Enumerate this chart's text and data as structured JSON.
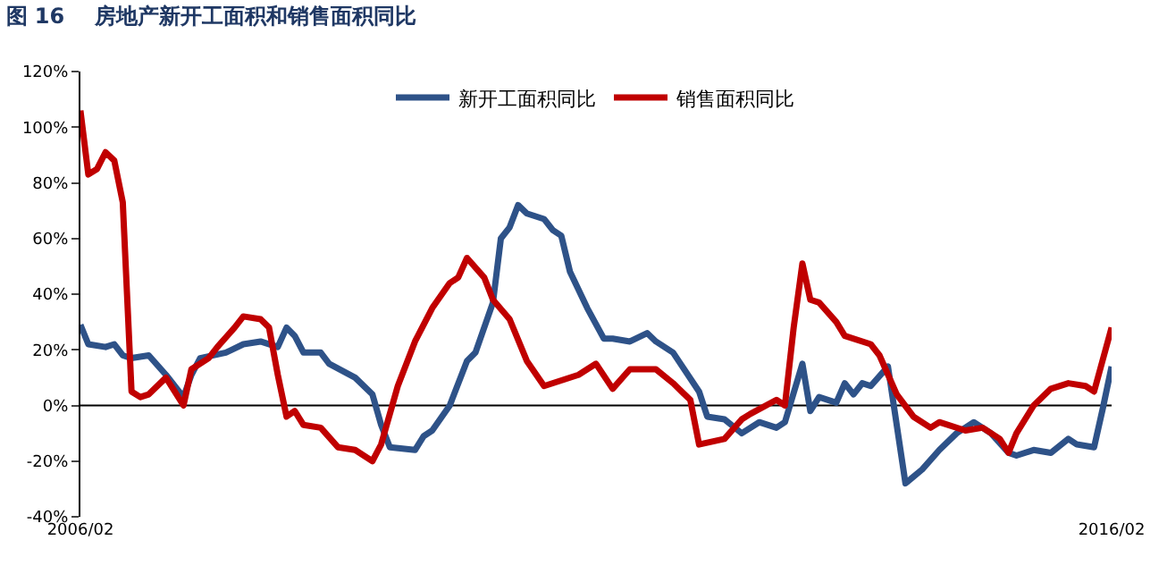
{
  "chart_data": {
    "type": "line",
    "title": "图 16    房地产新开工面积和销售面积同比",
    "xlim": [
      "2006-02",
      "2016-02"
    ],
    "xticks": [
      {
        "value": "2006-02",
        "label": "2006/02"
      },
      {
        "value": "2016-02",
        "label": "2016/02"
      }
    ],
    "ylim": [
      -40,
      120
    ],
    "yticks": [
      {
        "value": -40,
        "label": "-40%"
      },
      {
        "value": -20,
        "label": "-20%"
      },
      {
        "value": 0,
        "label": "0%"
      },
      {
        "value": 20,
        "label": "20%"
      },
      {
        "value": 40,
        "label": "40%"
      },
      {
        "value": 60,
        "label": "60%"
      },
      {
        "value": 80,
        "label": "80%"
      },
      {
        "value": 100,
        "label": "100%"
      },
      {
        "value": 120,
        "label": "120%"
      }
    ],
    "grid": false,
    "ref_lines": [
      {
        "axis": "y",
        "value": 0,
        "color": "#000000"
      }
    ],
    "legend": "top",
    "marker": "none",
    "line_style": "solid",
    "series": [
      {
        "name": "新开工面积同比",
        "color": "#2e5288",
        "x": [
          "2006-02",
          "2006-03",
          "2006-05",
          "2006-06",
          "2006-07",
          "2006-08",
          "2006-10",
          "2006-12",
          "2007-02",
          "2007-03",
          "2007-04",
          "2007-07",
          "2007-09",
          "2007-11",
          "2008-01",
          "2008-02",
          "2008-03",
          "2008-04",
          "2008-06",
          "2008-07",
          "2008-10",
          "2008-12",
          "2009-01",
          "2009-02",
          "2009-05",
          "2009-06",
          "2009-07",
          "2009-09",
          "2009-11",
          "2009-12",
          "2010-02",
          "2010-03",
          "2010-04",
          "2010-05",
          "2010-06",
          "2010-08",
          "2010-09",
          "2010-10",
          "2010-11",
          "2011-01",
          "2011-03",
          "2011-04",
          "2011-06",
          "2011-08",
          "2011-09",
          "2011-11",
          "2012-02",
          "2012-03",
          "2012-05",
          "2012-07",
          "2012-09",
          "2012-11",
          "2012-12",
          "2013-02",
          "2013-03",
          "2013-04",
          "2013-06",
          "2013-07",
          "2013-08",
          "2013-09",
          "2013-10",
          "2013-12",
          "2014-02",
          "2014-04",
          "2014-06",
          "2014-08",
          "2014-10",
          "2014-12",
          "2015-02",
          "2015-03",
          "2015-05",
          "2015-07",
          "2015-09",
          "2015-10",
          "2015-12",
          "2016-01",
          "2016-02"
        ],
        "values": [
          29,
          22,
          21,
          22,
          18,
          17,
          18,
          11,
          3,
          11,
          17,
          19,
          22,
          23,
          21,
          28,
          25,
          19,
          19,
          15,
          10,
          4,
          -7,
          -15,
          -16,
          -11,
          -9,
          0,
          16,
          19,
          37,
          60,
          64,
          72,
          69,
          67,
          63,
          61,
          48,
          35,
          24,
          24,
          23,
          26,
          23,
          19,
          5,
          -4,
          -5,
          -10,
          -6,
          -8,
          -6,
          15,
          -2,
          3,
          1,
          8,
          4,
          8,
          7,
          14,
          -28,
          -23,
          -16,
          -10,
          -6,
          -10,
          -17,
          -18,
          -16,
          -17,
          -12,
          -14,
          -15,
          -1,
          14
        ]
      },
      {
        "name": "销售面积同比",
        "color": "#c00000",
        "x": [
          "2006-02",
          "2006-03",
          "2006-04",
          "2006-05",
          "2006-06",
          "2006-07",
          "2006-08",
          "2006-09",
          "2006-10",
          "2006-12",
          "2007-01",
          "2007-02",
          "2007-03",
          "2007-05",
          "2007-06",
          "2007-08",
          "2007-09",
          "2007-11",
          "2007-12",
          "2008-01",
          "2008-02",
          "2008-03",
          "2008-04",
          "2008-06",
          "2008-08",
          "2008-10",
          "2008-12",
          "2009-01",
          "2009-03",
          "2009-05",
          "2009-07",
          "2009-09",
          "2009-10",
          "2009-11",
          "2010-01",
          "2010-02",
          "2010-04",
          "2010-06",
          "2010-08",
          "2010-10",
          "2010-12",
          "2011-02",
          "2011-04",
          "2011-06",
          "2011-09",
          "2011-11",
          "2012-01",
          "2012-02",
          "2012-05",
          "2012-07",
          "2012-08",
          "2012-11",
          "2012-12",
          "2013-01",
          "2013-02",
          "2013-03",
          "2013-04",
          "2013-06",
          "2013-07",
          "2013-10",
          "2013-11",
          "2014-01",
          "2014-03",
          "2014-05",
          "2014-06",
          "2014-09",
          "2014-11",
          "2015-01",
          "2015-02",
          "2015-03",
          "2015-05",
          "2015-07",
          "2015-09",
          "2015-11",
          "2015-12",
          "2016-02"
        ],
        "values": [
          106,
          83,
          85,
          91,
          88,
          73,
          5,
          3,
          4,
          10,
          5,
          0,
          13,
          17,
          21,
          28,
          32,
          31,
          28,
          11,
          -4,
          -2,
          -7,
          -8,
          -15,
          -16,
          -20,
          -14,
          7,
          23,
          35,
          44,
          46,
          53,
          46,
          38,
          31,
          16,
          7,
          9,
          11,
          15,
          6,
          13,
          13,
          8,
          2,
          -14,
          -12,
          -5,
          -3,
          2,
          0,
          28,
          51,
          38,
          37,
          30,
          25,
          22,
          18,
          4,
          -4,
          -8,
          -6,
          -9,
          -8,
          -12,
          -17,
          -10,
          0,
          6,
          8,
          7,
          5,
          28
        ]
      }
    ]
  }
}
